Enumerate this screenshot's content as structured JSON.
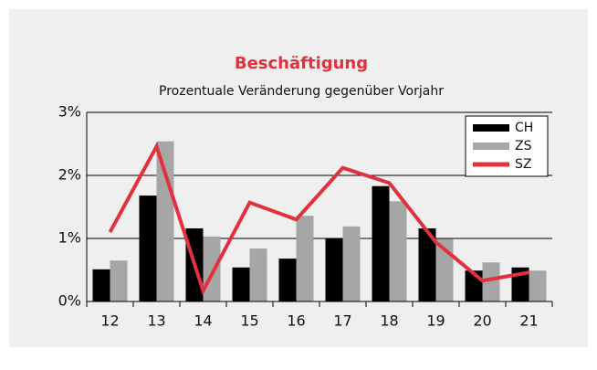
{
  "chart_data": {
    "type": "bar-line",
    "title": "Beschäftigung",
    "subtitle": "Prozentuale Veränderung gegenüber Vorjahr",
    "categories": [
      "12",
      "13",
      "14",
      "15",
      "16",
      "17",
      "18",
      "19",
      "20",
      "21"
    ],
    "series": [
      {
        "name": "CH",
        "type": "bar",
        "color": "#000000",
        "values": [
          0.51,
          1.68,
          1.16,
          0.54,
          0.68,
          1.0,
          1.83,
          1.16,
          0.49,
          0.54
        ]
      },
      {
        "name": "ZS",
        "type": "bar",
        "color": "#a6a6a6",
        "values": [
          0.65,
          2.54,
          1.03,
          0.84,
          1.36,
          1.19,
          1.59,
          0.99,
          0.62,
          0.49
        ]
      },
      {
        "name": "SZ",
        "type": "line",
        "color": "#e0313c",
        "values": [
          1.1,
          2.46,
          0.17,
          1.57,
          1.3,
          2.12,
          1.88,
          0.94,
          0.33,
          0.46
        ]
      }
    ],
    "ylim": [
      0,
      3
    ],
    "yticks": [
      {
        "value": 0,
        "label": "0%"
      },
      {
        "value": 1,
        "label": "1%"
      },
      {
        "value": 2,
        "label": "2%"
      },
      {
        "value": 3,
        "label": "3%"
      }
    ],
    "grid": true,
    "legend": "top-right"
  }
}
